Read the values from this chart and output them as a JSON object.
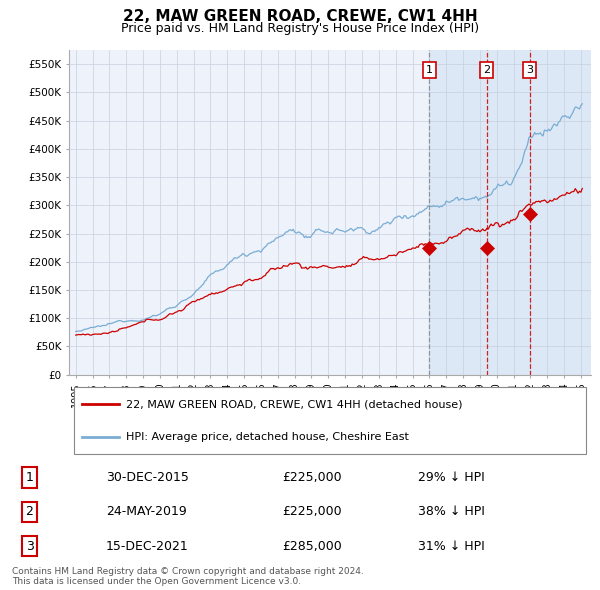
{
  "title": "22, MAW GREEN ROAD, CREWE, CW1 4HH",
  "subtitle": "Price paid vs. HM Land Registry's House Price Index (HPI)",
  "legend_line1": "22, MAW GREEN ROAD, CREWE, CW1 4HH (detached house)",
  "legend_line2": "HPI: Average price, detached house, Cheshire East",
  "footer1": "Contains HM Land Registry data © Crown copyright and database right 2024.",
  "footer2": "This data is licensed under the Open Government Licence v3.0.",
  "transactions": [
    {
      "id": 1,
      "date": "30-DEC-2015",
      "price": "£225,000",
      "pct": "29% ↓ HPI",
      "date_num": 2016.0
    },
    {
      "id": 2,
      "date": "24-MAY-2019",
      "price": "£225,000",
      "pct": "38% ↓ HPI",
      "date_num": 2019.4
    },
    {
      "id": 3,
      "date": "15-DEC-2021",
      "price": "£285,000",
      "pct": "31% ↓ HPI",
      "date_num": 2021.96
    }
  ],
  "yticks": [
    0,
    50000,
    100000,
    150000,
    200000,
    250000,
    300000,
    350000,
    400000,
    450000,
    500000,
    550000
  ],
  "ylabels": [
    "£0",
    "£50K",
    "£100K",
    "£150K",
    "£200K",
    "£250K",
    "£300K",
    "£350K",
    "£400K",
    "£450K",
    "£500K",
    "£550K"
  ],
  "hpi_color": "#7aadd4",
  "price_color": "#cc0000",
  "bg_color": "#ffffff",
  "plot_bg": "#eef2fa",
  "grid_color": "#c8cfe0",
  "shade_color": "#dce8f5",
  "marker_color": "#cc0000",
  "trans1_line_color": "#888888",
  "trans23_line_color": "#cc0000",
  "trans_marker_prices": [
    225000,
    225000,
    285000
  ]
}
